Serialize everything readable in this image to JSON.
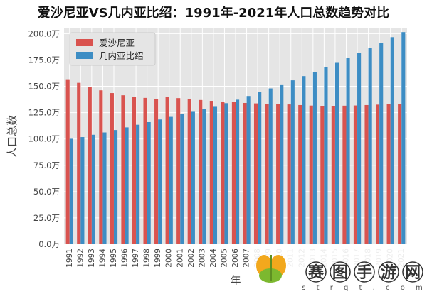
{
  "chart_data": {
    "type": "bar",
    "title": "爱沙尼亚VS几内亚比绍：1991年-2021年人口总数趋势对比",
    "xlabel": "年",
    "ylabel": "人口总数",
    "ylim": [
      0,
      2050000
    ],
    "yticks": [
      "0.0万",
      "25.0万",
      "50.0万",
      "75.0万",
      "100.0万",
      "125.0万",
      "150.0万",
      "175.0万",
      "200.0万"
    ],
    "categories": [
      "1991",
      "1992",
      "1993",
      "1994",
      "1995",
      "1996",
      "1997",
      "1998",
      "1999",
      "2000",
      "2001",
      "2002",
      "2003",
      "2004",
      "2005",
      "2006",
      "2007",
      "2008",
      "2009",
      "2010",
      "2011",
      "2012",
      "2013",
      "2014",
      "2015",
      "2016",
      "2017",
      "2018",
      "2019",
      "2020",
      "2021"
    ],
    "grid": true,
    "legend_position": "top-left",
    "series": [
      {
        "name": "爱沙尼亚",
        "color": "#d9534f",
        "values": [
          1567000,
          1533000,
          1494000,
          1462000,
          1436000,
          1415000,
          1400000,
          1390000,
          1380000,
          1397000,
          1388000,
          1379000,
          1370000,
          1362000,
          1355000,
          1350000,
          1342000,
          1338000,
          1335000,
          1332000,
          1328000,
          1322000,
          1317000,
          1315000,
          1315000,
          1316000,
          1318000,
          1322000,
          1326000,
          1330000,
          1331000
        ]
      },
      {
        "name": "几内亚比绍",
        "color": "#3d8dc4",
        "values": [
          1002000,
          1018000,
          1040000,
          1062000,
          1085000,
          1110000,
          1135000,
          1160000,
          1185000,
          1210000,
          1235000,
          1258000,
          1285000,
          1312000,
          1340000,
          1373000,
          1408000,
          1444000,
          1480000,
          1518000,
          1557000,
          1597000,
          1638000,
          1680000,
          1723000,
          1770000,
          1815000,
          1863000,
          1912000,
          1967000,
          2015000
        ]
      }
    ]
  },
  "watermark": {
    "chars": [
      "赛",
      "图",
      "手",
      "游",
      "网"
    ],
    "url": "s t r q t . c o m"
  }
}
